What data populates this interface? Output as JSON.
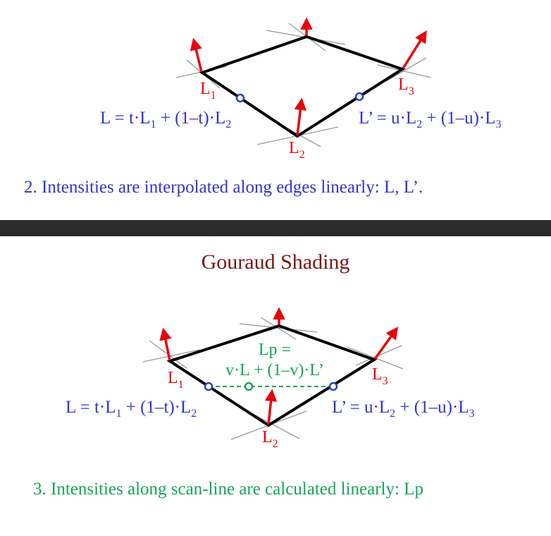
{
  "colors": {
    "edge": "#000000",
    "normal_line": "#999999",
    "vertex_normal": "#e8000b",
    "formula": "#3333cc",
    "scanline": "#17a35a",
    "title": "#7b1515",
    "vertex_label": "#e8000b",
    "divider": "#2b2b2b"
  },
  "top_slide": {
    "vertex_labels": {
      "v1": {
        "base": "L",
        "sub": "1"
      },
      "v2": {
        "base": "L",
        "sub": "2"
      },
      "v3": {
        "base": "L",
        "sub": "3"
      }
    },
    "formula_left": {
      "p1": "L = t·L",
      "s1": "1",
      "p2": " + (1–t)·L",
      "s2": "2"
    },
    "formula_right": {
      "p1": "L’ = u·L",
      "s1": "2",
      "p2": " + (1–u)·L",
      "s2": "3"
    },
    "caption": "2. Intensities are interpolated along edges linearly: L, L’."
  },
  "bottom_slide": {
    "title": "Gouraud Shading",
    "vertex_labels": {
      "v1": {
        "base": "L",
        "sub": "1"
      },
      "v2": {
        "base": "L",
        "sub": "2"
      },
      "v3": {
        "base": "L",
        "sub": "3"
      }
    },
    "formula_left": {
      "p1": "L = t·L",
      "s1": "1",
      "p2": " + (1–t)·L",
      "s2": "2"
    },
    "formula_right": {
      "p1": "L’ = u·L",
      "s1": "2",
      "p2": " + (1–u)·L",
      "s2": "3"
    },
    "lp_line1": "Lp =",
    "lp_line2": "v·L + (1–v)·L’",
    "caption": "3. Intensities along scan-line are calculated linearly: Lp"
  }
}
